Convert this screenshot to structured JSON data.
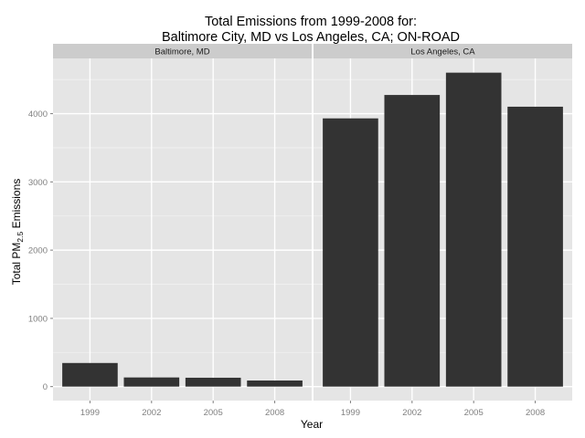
{
  "chart_data": {
    "type": "bar",
    "title_line1": "Total Emissions from 1999-2008 for:",
    "title_line2": "Baltimore City, MD vs Los Angeles, CA; ON-ROAD",
    "xlabel": "Year",
    "ylabel_main": "Total PM",
    "ylabel_sub": "2.5",
    "ylabel_end": " Emissions",
    "categories": [
      "1999",
      "2002",
      "2005",
      "2008"
    ],
    "ylim": [
      -205,
      4810
    ],
    "yticks": [
      0,
      1000,
      2000,
      3000,
      4000
    ],
    "grid": true,
    "legend": "none",
    "bar_color": "#333333",
    "panel_background": "#e5e5e5",
    "strip_background": "#cccccc",
    "grid_major_color": "#ffffff",
    "grid_minor_color": "#f2f2f2",
    "facets": [
      {
        "name": "Baltimore, MD",
        "values": [
          346,
          134,
          130,
          89
        ]
      },
      {
        "name": "Los Angeles, CA",
        "values": [
          3931,
          4274,
          4601,
          4102
        ]
      }
    ]
  }
}
